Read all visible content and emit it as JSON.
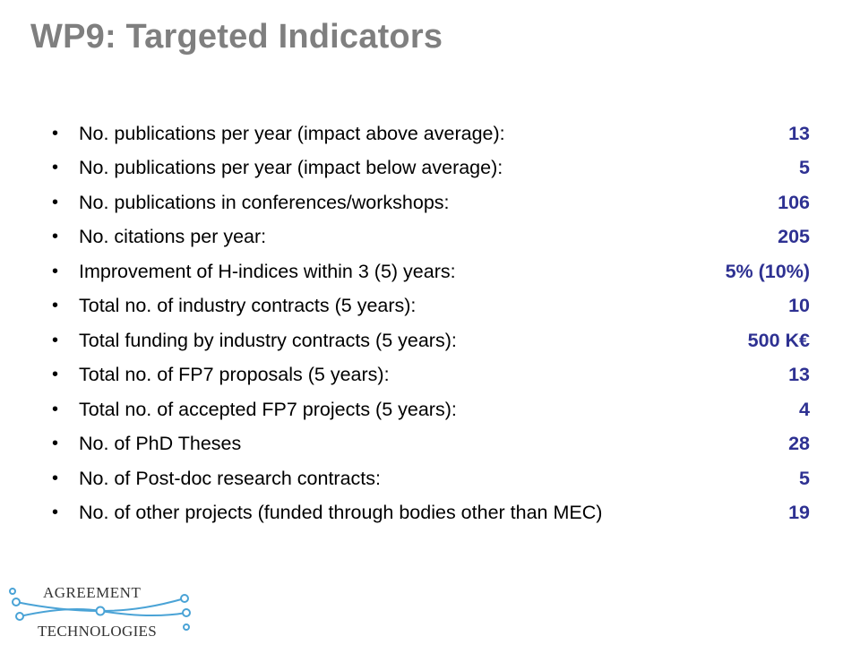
{
  "slide": {
    "title": "WP9: Targeted Indicators"
  },
  "indicators": [
    {
      "label": "No. publications per year (impact above average):",
      "value": "13"
    },
    {
      "label": "No. publications per year (impact below average):",
      "value": "5"
    },
    {
      "label": "No. publications in conferences/workshops:",
      "value": "106"
    },
    {
      "label": "No. citations per year:",
      "value": "205"
    },
    {
      "label": "Improvement of H-indices within 3 (5) years:",
      "value": "5% (10%)"
    },
    {
      "label": "Total no. of industry contracts (5 years):",
      "value": "10"
    },
    {
      "label": "Total funding by industry contracts (5 years):",
      "value": "500 K€"
    },
    {
      "label": "Total no. of FP7 proposals (5 years):",
      "value": "13"
    },
    {
      "label": "Total no. of accepted FP7 projects (5 years):",
      "value": "4"
    },
    {
      "label": "No. of PhD Theses",
      "value": "28"
    },
    {
      "label": "No. of Post-doc research contracts:",
      "value": "5"
    },
    {
      "label": "No. of other projects (funded through bodies other than MEC)",
      "value": "19"
    }
  ],
  "bullet_glyph": "•",
  "logo": {
    "line1": "AGREEMENT",
    "line2": "TECHNOLOGIES",
    "accent_color": "#4aa3d6"
  },
  "colors": {
    "title": "#7f7f7f",
    "value": "#2e3192",
    "text": "#000000"
  }
}
